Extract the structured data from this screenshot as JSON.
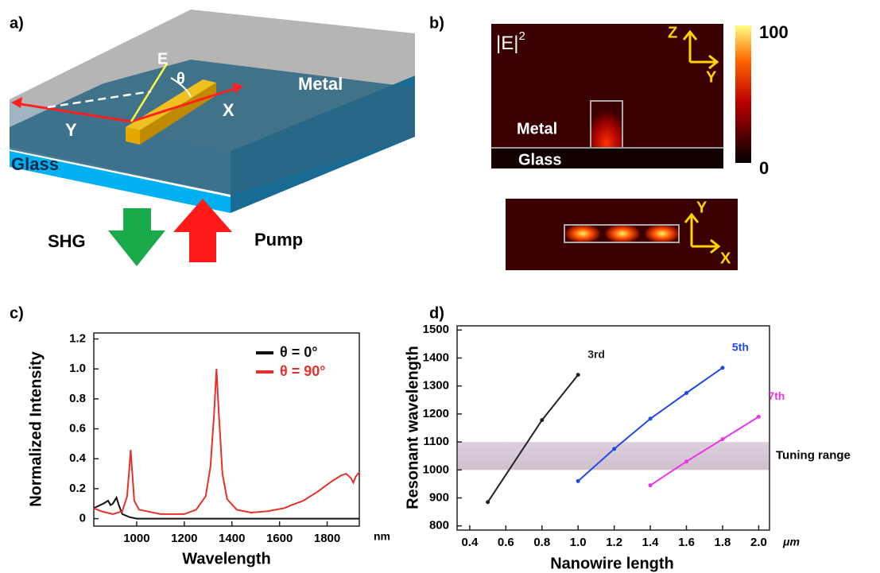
{
  "panel_a": {
    "label": "a)",
    "e": "E",
    "theta": "θ",
    "metal": "Metal",
    "x": "X",
    "y": "Y",
    "glass": "Glass",
    "shg": "SHG",
    "pump": "Pump"
  },
  "panel_b": {
    "label": "b)",
    "field": "|E|",
    "field_exponent": "2",
    "metal": "Metal",
    "glass": "Glass",
    "colorbar_max": 100,
    "colorbar_min": 0,
    "axes_top": [
      "Z",
      "Y"
    ],
    "axes_bottom": [
      "Y",
      "X"
    ]
  },
  "chart_data": [
    {
      "type": "line",
      "label": "c)",
      "x_label": "Wavelength",
      "y_label": "Normalized Intensity",
      "x_unit": "nm",
      "xlim": [
        820,
        1935
      ],
      "xticks": [
        1000,
        1200,
        1400,
        1600,
        1800
      ],
      "ylim": [
        -0.05,
        1.24
      ],
      "yticks": [
        0,
        0.2,
        0.4,
        0.6,
        0.8,
        {
          "value": 1,
          "label": "1.0"
        },
        1.2
      ],
      "legend": "upper right",
      "series": [
        {
          "name": "θ = 0°",
          "color": "#111111",
          "x": [
            820,
            860,
            880,
            890,
            900,
            915,
            925,
            940,
            970,
            1000,
            1935
          ],
          "values": [
            0.07,
            0.1,
            0.12,
            0.09,
            0.1,
            0.14,
            0.09,
            0.03,
            0.01,
            0,
            0
          ]
        },
        {
          "name": "θ = 90°",
          "color": "#e8302a",
          "x": [
            820,
            850,
            900,
            940,
            960,
            970,
            975,
            982,
            990,
            1010,
            1100,
            1200,
            1250,
            1290,
            1310,
            1325,
            1335,
            1345,
            1360,
            1380,
            1420,
            1480,
            1550,
            1620,
            1650,
            1700,
            1760,
            1820,
            1860,
            1880,
            1900,
            1910,
            1920,
            1935
          ],
          "values": [
            0.07,
            0.05,
            0.03,
            0.05,
            0.15,
            0.35,
            0.46,
            0.3,
            0.12,
            0.06,
            0.03,
            0.03,
            0.06,
            0.15,
            0.35,
            0.7,
            1.0,
            0.7,
            0.3,
            0.13,
            0.06,
            0.04,
            0.05,
            0.07,
            0.09,
            0.12,
            0.18,
            0.25,
            0.29,
            0.3,
            0.27,
            0.24,
            0.28,
            0.31
          ]
        }
      ]
    },
    {
      "type": "line",
      "label": "d)",
      "x_label": "Nanowire length",
      "y_label": "Resonant wavelength",
      "x_unit": "μm",
      "xlim": [
        0.33,
        2.06
      ],
      "xticks": [
        0.4,
        0.6,
        0.8,
        {
          "value": 1,
          "label": "1.0"
        },
        1.2,
        1.4,
        1.6,
        1.8,
        {
          "value": 2,
          "label": "2.0"
        }
      ],
      "ylim": [
        785,
        1515
      ],
      "yticks": [
        800,
        900,
        1000,
        1100,
        1200,
        1300,
        1400,
        1500
      ],
      "shaded_range": [
        1000,
        1100
      ],
      "shaded_label": "Tuning range",
      "series": [
        {
          "name": "3rd",
          "color": "#222222",
          "x": [
            0.5,
            0.8,
            1.0
          ],
          "values": [
            885,
            1178,
            1340
          ]
        },
        {
          "name": "5th",
          "color": "#1f49e8",
          "x": [
            1.0,
            1.2,
            1.4,
            1.6,
            1.8
          ],
          "values": [
            960,
            1075,
            1183,
            1275,
            1365
          ]
        },
        {
          "name": "7th",
          "color": "#ee33ee",
          "x": [
            1.4,
            1.6,
            1.8,
            2.0
          ],
          "values": [
            945,
            1030,
            1110,
            1190
          ]
        }
      ]
    }
  ]
}
